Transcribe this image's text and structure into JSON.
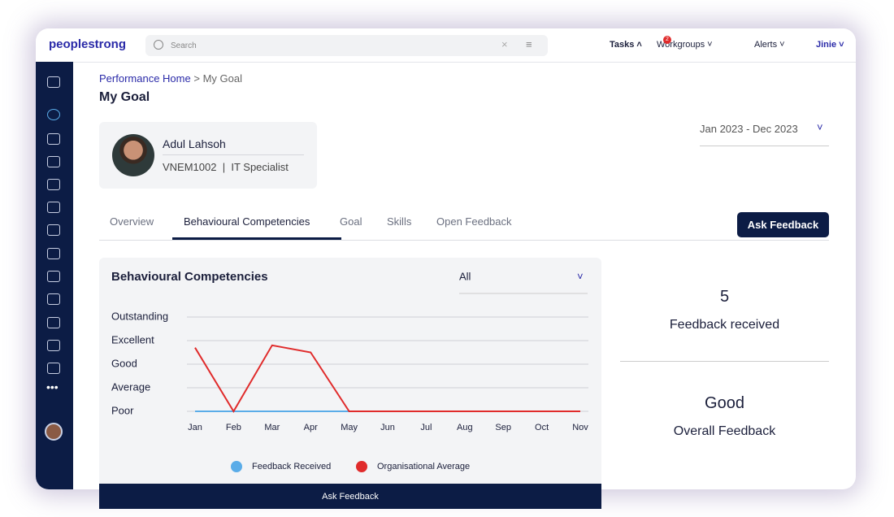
{
  "header": {
    "logo": "peoplestrong",
    "search_placeholder": "Search",
    "menu": [
      {
        "label": "Tasks"
      },
      {
        "label": "Workgroups",
        "badge": "2"
      },
      {
        "label": "Alerts"
      },
      {
        "label": "Jinie"
      }
    ]
  },
  "breadcrumb": {
    "link": "Performance Home",
    "separator": ">",
    "current": "My Goal"
  },
  "page_title": "My Goal",
  "profile": {
    "name": "Adul Lahsoh",
    "id": "VNEM1002",
    "separator": "|",
    "role": "IT Specialist"
  },
  "period": "Jan 2023 - Dec 2023",
  "tabs": [
    "Overview",
    "Behavioural Competencies",
    "Goal",
    "Skills",
    "Open Feedback"
  ],
  "active_tab": 1,
  "ask_feedback_button": "Ask Feedback",
  "chart": {
    "type": "line",
    "title": "Behavioural Competencies",
    "filter": "All",
    "categories": [
      "Jan",
      "Feb",
      "Mar",
      "Apr",
      "May",
      "Jun",
      "Jul",
      "Aug",
      "Sep",
      "Oct",
      "Nov"
    ],
    "ylim": [
      0,
      4
    ],
    "yticks": [
      {
        "value": 0,
        "label": "Poor"
      },
      {
        "value": 1,
        "label": "Average"
      },
      {
        "value": 2,
        "label": "Good"
      },
      {
        "value": 3,
        "label": "Excellent"
      },
      {
        "value": 4,
        "label": "Outstanding"
      }
    ],
    "grid": true,
    "series": [
      {
        "name": "Feedback Received",
        "color": "#5aace8",
        "values": [
          0,
          0,
          0,
          0,
          0,
          0,
          0,
          0,
          0,
          0,
          0
        ]
      },
      {
        "name": "Organisational Average",
        "color": "#e02b2b",
        "values": [
          2.7,
          0,
          2.8,
          2.5,
          0,
          0,
          0,
          0,
          0,
          0,
          0
        ]
      }
    ],
    "footer_button": "Ask Feedback"
  },
  "stats": [
    {
      "value": "5",
      "label": "Feedback received"
    },
    {
      "value": "Good",
      "label": "Overall Feedback"
    }
  ]
}
